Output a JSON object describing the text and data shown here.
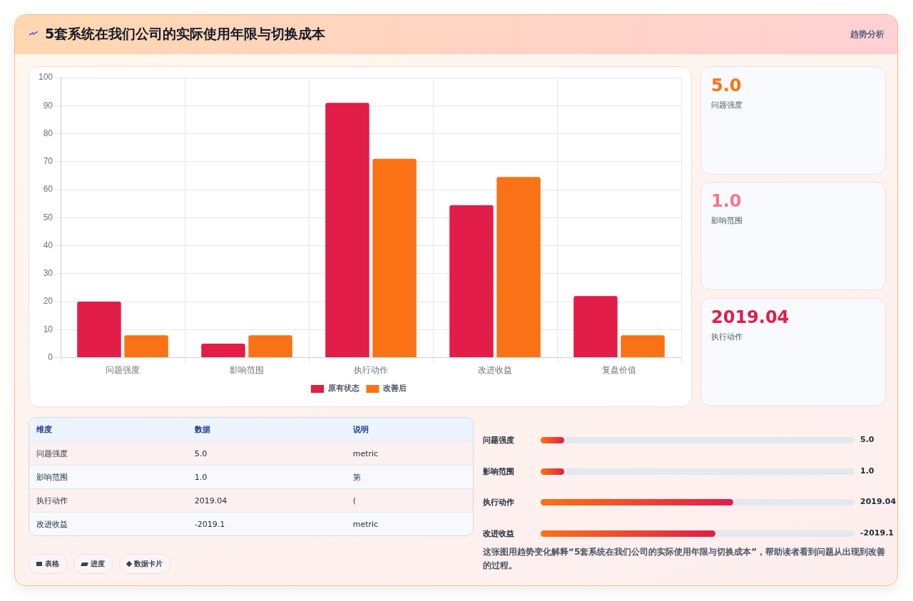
{
  "chart_data": [
    {
      "type": "other",
      "title": "5套系统在我们公司的实际使用年限与切换成本",
      "annotations": [
        "趋势分析"
      ]
    },
    {
      "type": "bar",
      "categories": [
        "问题强度",
        "影响范围",
        "执行动作",
        "改进收益",
        "复盘价值"
      ],
      "series": [
        {
          "name": "原有状态",
          "color": "#e11d48",
          "values": [
            20,
            5,
            91,
            54.5,
            22
          ]
        },
        {
          "name": "改善后",
          "color": "#f97316",
          "values": [
            8,
            8,
            71,
            64.5,
            8
          ]
        }
      ],
      "ylim": [
        0,
        100
      ],
      "yticks": [
        0,
        10,
        20,
        30,
        40,
        50,
        60,
        70,
        80,
        90,
        100
      ],
      "grid": true,
      "legend": "bottom"
    },
    {
      "type": "other",
      "annotations": [
        "5.0",
        "问题强度"
      ]
    },
    {
      "type": "other",
      "annotations": [
        "1.0",
        "影响范围"
      ]
    },
    {
      "type": "other",
      "annotations": [
        "2019.04",
        "执行动作"
      ]
    },
    {
      "type": "other",
      "annotations": [
        "维度",
        "数据",
        "说明",
        "问题强度",
        "5.0",
        "metric",
        "影响范围",
        "1.0",
        "第",
        "执行动作",
        "2019.04",
        "(",
        "改进收益",
        "-2019.1",
        "metric"
      ]
    },
    {
      "type": "other",
      "annotations": [
        "问题强度",
        "5.0",
        "影响范围",
        "1.0",
        "执行动作",
        "2019.04",
        "改进收益",
        "-2019.1",
        "这张图用趋势变化解释“5套系统在我们公司的实际使用年限与切换成本”，帮助读者看到问题从出现到改善的过程。"
      ]
    },
    {
      "type": "other",
      "annotations": [
        "表格",
        "进度",
        "数据卡片"
      ]
    }
  ]
}
